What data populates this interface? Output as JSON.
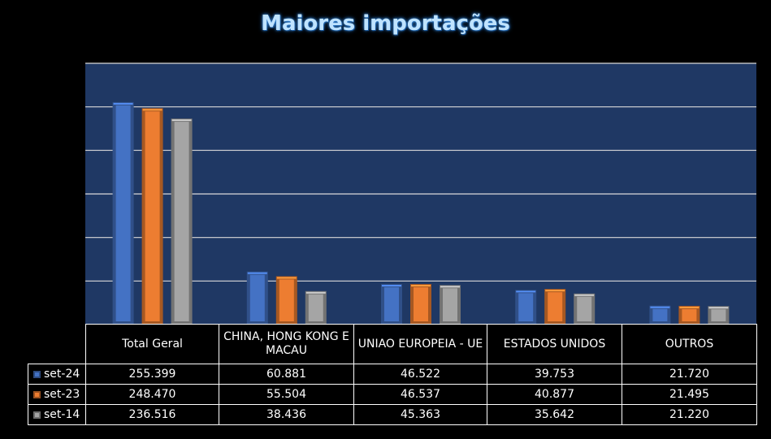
{
  "chart_data": {
    "type": "bar",
    "title": "Maiores importações",
    "categories": [
      "Total Geral",
      "CHINA, HONG KONG E MACAU",
      "UNIAO EUROPEIA - UE",
      "ESTADOS UNIDOS",
      "OUTROS"
    ],
    "series": [
      {
        "name": "set-24",
        "color": "#4472c4",
        "values": [
          255.399,
          60.881,
          46.522,
          39.753,
          21.72
        ],
        "labels": [
          "255.399",
          "60.881",
          "46.522",
          "39.753",
          "21.720"
        ]
      },
      {
        "name": "set-23",
        "color": "#ed7d31",
        "values": [
          248.47,
          55.504,
          46.537,
          40.877,
          21.495
        ],
        "labels": [
          "248.470",
          "55.504",
          "46.537",
          "40.877",
          "21.495"
        ]
      },
      {
        "name": "set-14",
        "color": "#a5a5a5",
        "values": [
          236.516,
          38.436,
          45.363,
          35.642,
          21.22
        ],
        "labels": [
          "236.516",
          "38.436",
          "45.363",
          "35.642",
          "21.220"
        ]
      }
    ],
    "ylim": [
      0,
      300
    ],
    "grid": true,
    "legend": "data-table"
  }
}
